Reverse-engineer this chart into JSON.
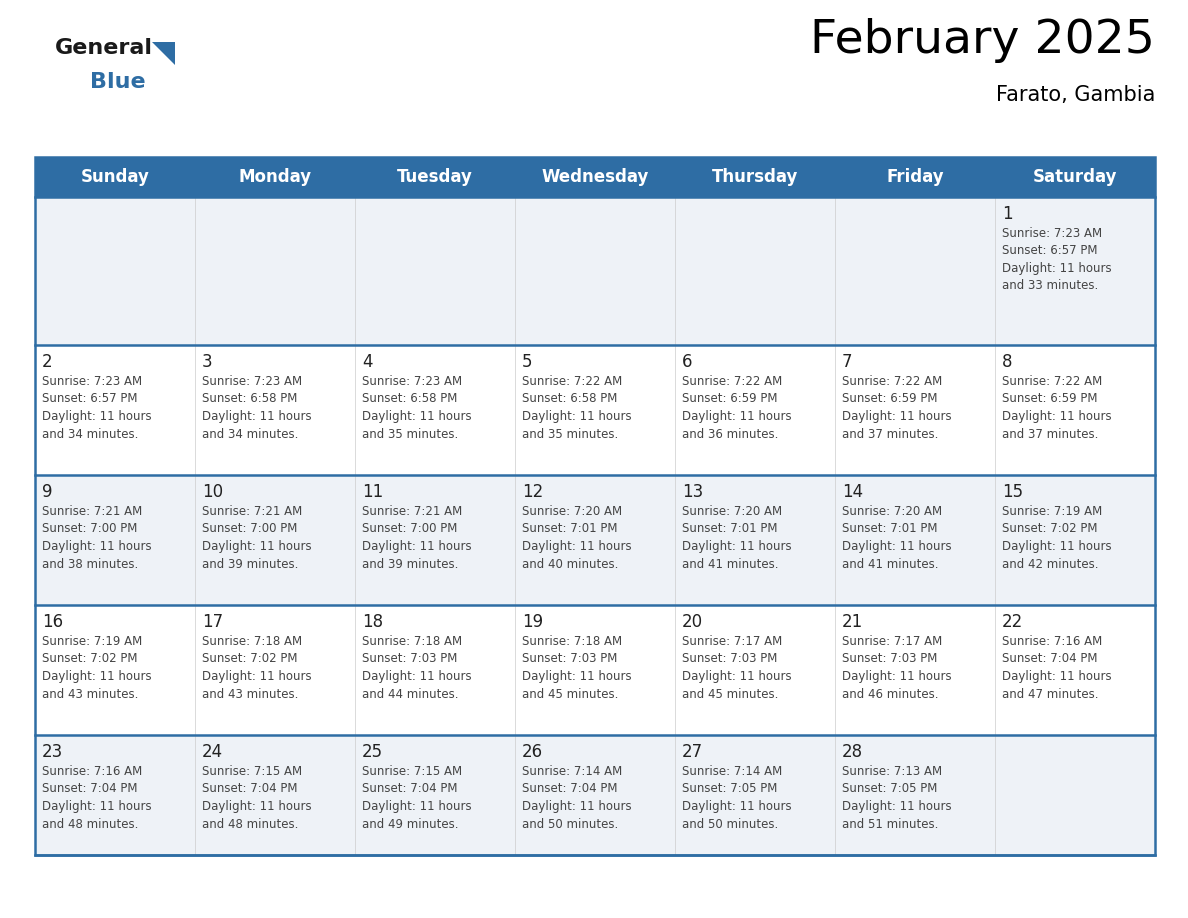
{
  "title": "February 2025",
  "subtitle": "Farato, Gambia",
  "days_of_week": [
    "Sunday",
    "Monday",
    "Tuesday",
    "Wednesday",
    "Thursday",
    "Friday",
    "Saturday"
  ],
  "header_bg": "#2e6da4",
  "header_text": "#ffffff",
  "row0_bg": "#eef2f7",
  "row_odd_bg": "#eef2f7",
  "row_even_bg": "#ffffff",
  "row_line_color": "#2e6da4",
  "text_color": "#444444",
  "day_num_color": "#222222",
  "logo_black": "#1a1a1a",
  "logo_blue": "#2e6da4",
  "calendar_data": [
    [
      null,
      null,
      null,
      null,
      null,
      null,
      {
        "day": 1,
        "sunrise": "7:23 AM",
        "sunset": "6:57 PM",
        "daylight": "11 hours\nand 33 minutes."
      }
    ],
    [
      {
        "day": 2,
        "sunrise": "7:23 AM",
        "sunset": "6:57 PM",
        "daylight": "11 hours\nand 34 minutes."
      },
      {
        "day": 3,
        "sunrise": "7:23 AM",
        "sunset": "6:58 PM",
        "daylight": "11 hours\nand 34 minutes."
      },
      {
        "day": 4,
        "sunrise": "7:23 AM",
        "sunset": "6:58 PM",
        "daylight": "11 hours\nand 35 minutes."
      },
      {
        "day": 5,
        "sunrise": "7:22 AM",
        "sunset": "6:58 PM",
        "daylight": "11 hours\nand 35 minutes."
      },
      {
        "day": 6,
        "sunrise": "7:22 AM",
        "sunset": "6:59 PM",
        "daylight": "11 hours\nand 36 minutes."
      },
      {
        "day": 7,
        "sunrise": "7:22 AM",
        "sunset": "6:59 PM",
        "daylight": "11 hours\nand 37 minutes."
      },
      {
        "day": 8,
        "sunrise": "7:22 AM",
        "sunset": "6:59 PM",
        "daylight": "11 hours\nand 37 minutes."
      }
    ],
    [
      {
        "day": 9,
        "sunrise": "7:21 AM",
        "sunset": "7:00 PM",
        "daylight": "11 hours\nand 38 minutes."
      },
      {
        "day": 10,
        "sunrise": "7:21 AM",
        "sunset": "7:00 PM",
        "daylight": "11 hours\nand 39 minutes."
      },
      {
        "day": 11,
        "sunrise": "7:21 AM",
        "sunset": "7:00 PM",
        "daylight": "11 hours\nand 39 minutes."
      },
      {
        "day": 12,
        "sunrise": "7:20 AM",
        "sunset": "7:01 PM",
        "daylight": "11 hours\nand 40 minutes."
      },
      {
        "day": 13,
        "sunrise": "7:20 AM",
        "sunset": "7:01 PM",
        "daylight": "11 hours\nand 41 minutes."
      },
      {
        "day": 14,
        "sunrise": "7:20 AM",
        "sunset": "7:01 PM",
        "daylight": "11 hours\nand 41 minutes."
      },
      {
        "day": 15,
        "sunrise": "7:19 AM",
        "sunset": "7:02 PM",
        "daylight": "11 hours\nand 42 minutes."
      }
    ],
    [
      {
        "day": 16,
        "sunrise": "7:19 AM",
        "sunset": "7:02 PM",
        "daylight": "11 hours\nand 43 minutes."
      },
      {
        "day": 17,
        "sunrise": "7:18 AM",
        "sunset": "7:02 PM",
        "daylight": "11 hours\nand 43 minutes."
      },
      {
        "day": 18,
        "sunrise": "7:18 AM",
        "sunset": "7:03 PM",
        "daylight": "11 hours\nand 44 minutes."
      },
      {
        "day": 19,
        "sunrise": "7:18 AM",
        "sunset": "7:03 PM",
        "daylight": "11 hours\nand 45 minutes."
      },
      {
        "day": 20,
        "sunrise": "7:17 AM",
        "sunset": "7:03 PM",
        "daylight": "11 hours\nand 45 minutes."
      },
      {
        "day": 21,
        "sunrise": "7:17 AM",
        "sunset": "7:03 PM",
        "daylight": "11 hours\nand 46 minutes."
      },
      {
        "day": 22,
        "sunrise": "7:16 AM",
        "sunset": "7:04 PM",
        "daylight": "11 hours\nand 47 minutes."
      }
    ],
    [
      {
        "day": 23,
        "sunrise": "7:16 AM",
        "sunset": "7:04 PM",
        "daylight": "11 hours\nand 48 minutes."
      },
      {
        "day": 24,
        "sunrise": "7:15 AM",
        "sunset": "7:04 PM",
        "daylight": "11 hours\nand 48 minutes."
      },
      {
        "day": 25,
        "sunrise": "7:15 AM",
        "sunset": "7:04 PM",
        "daylight": "11 hours\nand 49 minutes."
      },
      {
        "day": 26,
        "sunrise": "7:14 AM",
        "sunset": "7:04 PM",
        "daylight": "11 hours\nand 50 minutes."
      },
      {
        "day": 27,
        "sunrise": "7:14 AM",
        "sunset": "7:05 PM",
        "daylight": "11 hours\nand 50 minutes."
      },
      {
        "day": 28,
        "sunrise": "7:13 AM",
        "sunset": "7:05 PM",
        "daylight": "11 hours\nand 51 minutes."
      },
      null
    ]
  ],
  "figsize": [
    11.88,
    9.18
  ],
  "dpi": 100
}
